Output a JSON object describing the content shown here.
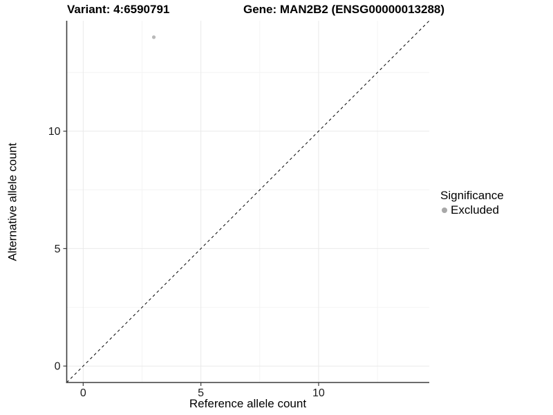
{
  "header": {
    "title_left": "Variant: 4:6590791",
    "title_right": "Gene: MAN2B2 (ENSG00000013288)"
  },
  "chart_data": {
    "type": "scatter",
    "xlabel": "Reference allele count",
    "ylabel": "Alternative allele count",
    "xlim": [
      -0.7,
      14.7
    ],
    "ylim": [
      -0.7,
      14.7
    ],
    "xticks": [
      0,
      5,
      10
    ],
    "yticks": [
      0,
      5,
      10
    ],
    "x_minor_ticks": [
      2.5,
      7.5,
      12.5
    ],
    "y_minor_ticks": [
      2.5,
      7.5,
      12.5
    ],
    "grid": "major+minor",
    "series": [
      {
        "name": "Excluded",
        "color": "#b9b9b9",
        "points": [
          {
            "x": 3,
            "y": 14
          }
        ]
      }
    ],
    "reference_line": {
      "kind": "identity y=x",
      "style": "dashed",
      "color": "#000000"
    },
    "legend": {
      "title": "Significance",
      "position": "right",
      "items": [
        {
          "label": "Excluded",
          "color": "#a8a8a8"
        }
      ]
    }
  },
  "colors": {
    "background": "#ffffff",
    "grid_major": "#e9e9e9",
    "grid_minor": "#f4f4f4",
    "axis_line": "#3c3c3c",
    "tick_mark": "#3c3c3c",
    "tick_label": "#1a1a1a",
    "reference_line": "#000000"
  }
}
